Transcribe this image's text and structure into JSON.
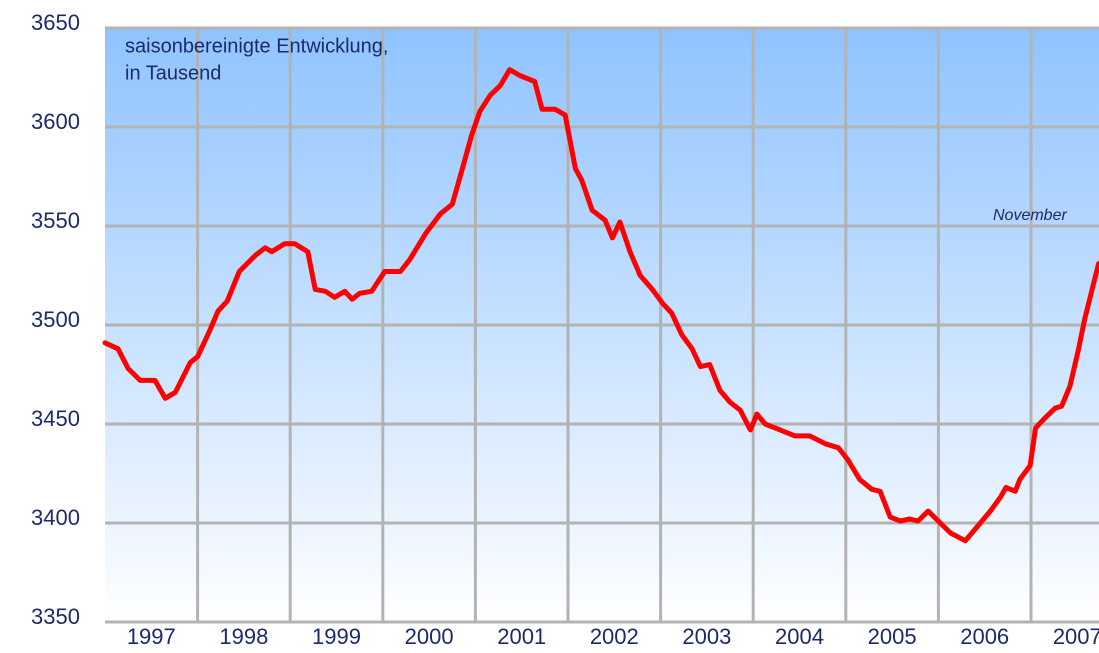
{
  "chart_data": {
    "type": "line",
    "annotations": [
      "saisonbereinigte Entwicklung,",
      "in Tausend",
      "November"
    ],
    "x": [
      1997.0,
      1997.14,
      1997.25,
      1997.38,
      1997.54,
      1997.65,
      1997.76,
      1997.92,
      1998.0,
      1998.13,
      1998.22,
      1998.32,
      1998.45,
      1998.62,
      1998.73,
      1998.8,
      1998.94,
      1999.05,
      1999.19,
      1999.27,
      1999.38,
      1999.48,
      1999.59,
      1999.67,
      1999.75,
      1999.88,
      2000.02,
      2000.19,
      2000.29,
      2000.46,
      2000.62,
      2000.75,
      2000.86,
      2000.96,
      2001.05,
      2001.16,
      2001.27,
      2001.37,
      2001.48,
      2001.64,
      2001.72,
      2001.86,
      2001.97,
      2002.08,
      2002.15,
      2002.26,
      2002.4,
      2002.48,
      2002.56,
      2002.67,
      2002.78,
      2002.91,
      2003.02,
      2003.12,
      2003.23,
      2003.34,
      2003.43,
      2003.53,
      2003.64,
      2003.75,
      2003.86,
      2003.97,
      2004.04,
      2004.13,
      2004.29,
      2004.45,
      2004.61,
      2004.78,
      2004.92,
      2005.02,
      2005.15,
      2005.28,
      2005.37,
      2005.48,
      2005.59,
      2005.69,
      2005.78,
      2005.89,
      2006.02,
      2006.13,
      2006.29,
      2006.4,
      2006.56,
      2006.67,
      2006.73,
      2006.83,
      2006.88,
      2006.99,
      2007.05,
      2007.15,
      2007.26,
      2007.33,
      2007.42,
      2007.51,
      2007.58,
      2007.73
    ],
    "series": [
      {
        "color": "#ff0000",
        "values": [
          3491,
          3488,
          3478,
          3472,
          3472,
          3463,
          3466,
          3481,
          3484,
          3497,
          3507,
          3512,
          3527,
          3535,
          3539,
          3537,
          3541,
          3541,
          3537,
          3518,
          3517,
          3514,
          3517,
          3513,
          3516,
          3517,
          3527,
          3527,
          3533,
          3546,
          3556,
          3561,
          3579,
          3596,
          3608,
          3616,
          3621,
          3629,
          3626,
          3623,
          3609,
          3609,
          3606,
          3579,
          3573,
          3558,
          3553,
          3544,
          3552,
          3537,
          3525,
          3518,
          3511,
          3506,
          3495,
          3488,
          3479,
          3480,
          3467,
          3461,
          3457,
          3447,
          3455,
          3450,
          3447,
          3444,
          3444,
          3440,
          3438,
          3432,
          3422,
          3417,
          3416,
          3403,
          3401,
          3402,
          3401,
          3406,
          3400,
          3395,
          3391,
          3397,
          3406,
          3413,
          3418,
          3416,
          3422,
          3429,
          3448,
          3453,
          3458,
          3459,
          3469,
          3487,
          3503,
          3531
        ]
      }
    ],
    "xlim": [
      1997,
      2007.73
    ],
    "xticks": [
      {
        "value": 1997.5,
        "label": "1997"
      },
      {
        "value": 1998.5,
        "label": "1998"
      },
      {
        "value": 1999.5,
        "label": "1999"
      },
      {
        "value": 2000.5,
        "label": "2000"
      },
      {
        "value": 2001.5,
        "label": "2001"
      },
      {
        "value": 2002.5,
        "label": "2002"
      },
      {
        "value": 2003.5,
        "label": "2003"
      },
      {
        "value": 2004.5,
        "label": "2004"
      },
      {
        "value": 2005.5,
        "label": "2005"
      },
      {
        "value": 2006.5,
        "label": "2006"
      },
      {
        "value": 2007.5,
        "label": "2007"
      }
    ],
    "xgrid": [
      1998,
      1999,
      2000,
      2001,
      2002,
      2003,
      2004,
      2005,
      2006,
      2007
    ],
    "ylim": [
      3350,
      3650
    ],
    "yticks": [
      3350,
      3400,
      3450,
      3500,
      3550,
      3600,
      3650
    ],
    "grid": true
  }
}
